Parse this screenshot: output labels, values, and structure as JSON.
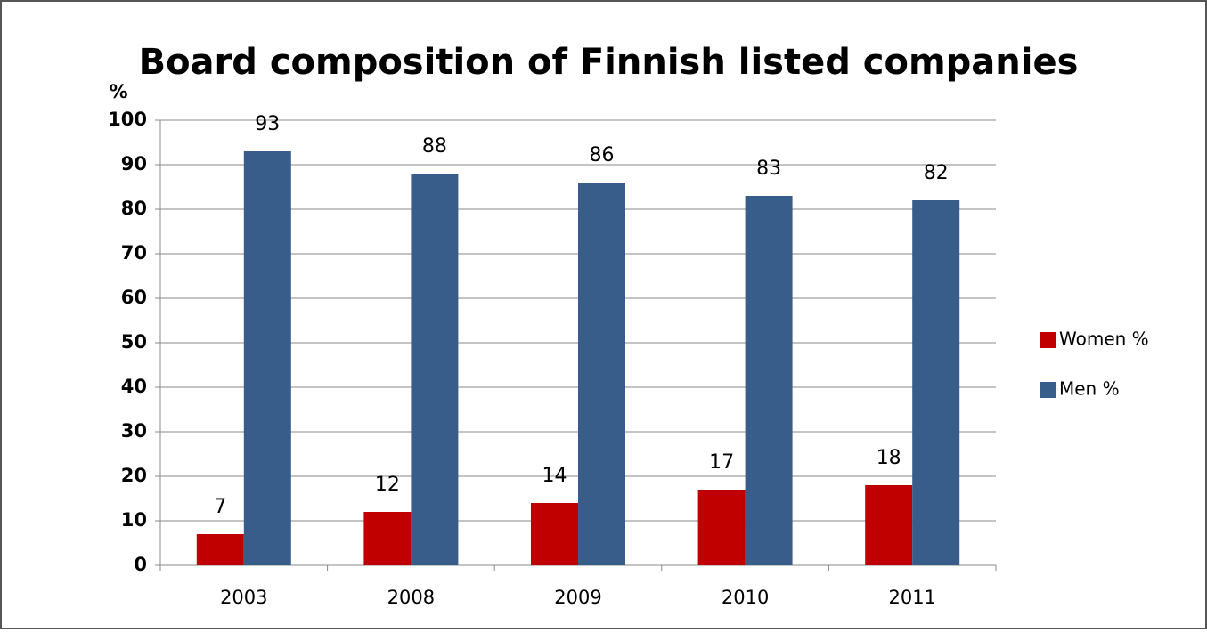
{
  "chart_data": {
    "type": "bar",
    "title": "Board composition of Finnish listed companies",
    "y_label": "%",
    "categories": [
      "2003",
      "2008",
      "2009",
      "2010",
      "2011"
    ],
    "series": [
      {
        "name": "Women %",
        "color": "#c00000",
        "values": [
          7,
          12,
          14,
          17,
          18
        ]
      },
      {
        "name": "Men %",
        "color": "#385d8a",
        "values": [
          93,
          88,
          86,
          83,
          82
        ]
      }
    ],
    "ylim": [
      0,
      100
    ],
    "yticks": [
      0,
      10,
      20,
      30,
      40,
      50,
      60,
      70,
      80,
      90,
      100
    ],
    "grid": true,
    "legend": "right"
  }
}
